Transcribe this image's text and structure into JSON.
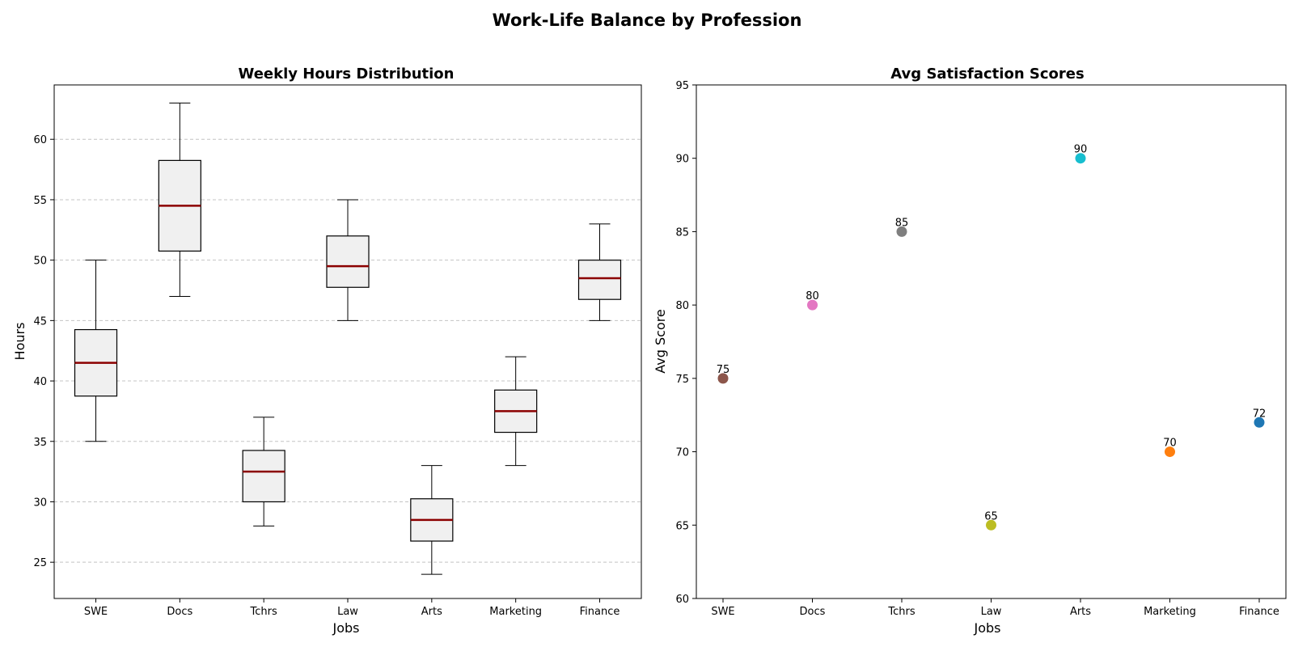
{
  "figure": {
    "title": "Work-Life Balance by Profession"
  },
  "chart_data": [
    {
      "type": "box",
      "title": "Weekly Hours Distribution",
      "xlabel": "Jobs",
      "ylabel": "Hours",
      "ylim": [
        22,
        64.5
      ],
      "yticks": [
        25,
        30,
        35,
        40,
        45,
        50,
        55,
        60
      ],
      "grid": "y-dashed",
      "box_color": "#f0f0f0",
      "median_color": "#8b0000",
      "categories": [
        "SWE",
        "Docs",
        "Tchrs",
        "Law",
        "Arts",
        "Marketing",
        "Finance"
      ],
      "boxes": [
        {
          "min": 35,
          "q1": 38.75,
          "median": 41.5,
          "q3": 44.25,
          "max": 50
        },
        {
          "min": 47,
          "q1": 50.75,
          "median": 54.5,
          "q3": 58.25,
          "max": 63
        },
        {
          "min": 28,
          "q1": 30,
          "median": 32.5,
          "q3": 34.25,
          "max": 37
        },
        {
          "min": 45,
          "q1": 47.75,
          "median": 49.5,
          "q3": 52,
          "max": 55
        },
        {
          "min": 24,
          "q1": 26.75,
          "median": 28.5,
          "q3": 30.25,
          "max": 33
        },
        {
          "min": 33,
          "q1": 35.75,
          "median": 37.5,
          "q3": 39.25,
          "max": 42
        },
        {
          "min": 45,
          "q1": 46.75,
          "median": 48.5,
          "q3": 50,
          "max": 53
        }
      ]
    },
    {
      "type": "scatter",
      "title": "Avg Satisfaction Scores",
      "xlabel": "Jobs",
      "ylabel": "Avg Score",
      "ylim": [
        60,
        95
      ],
      "yticks": [
        60,
        65,
        70,
        75,
        80,
        85,
        90,
        95
      ],
      "grid": "off",
      "categories": [
        "SWE",
        "Docs",
        "Tchrs",
        "Law",
        "Arts",
        "Marketing",
        "Finance"
      ],
      "values": [
        75,
        80,
        85,
        65,
        90,
        70,
        72
      ],
      "colors": [
        "#8c564b",
        "#e377c2",
        "#7f7f7f",
        "#bcbd22",
        "#17becf",
        "#ff7f0e",
        "#1f77b4"
      ]
    }
  ]
}
